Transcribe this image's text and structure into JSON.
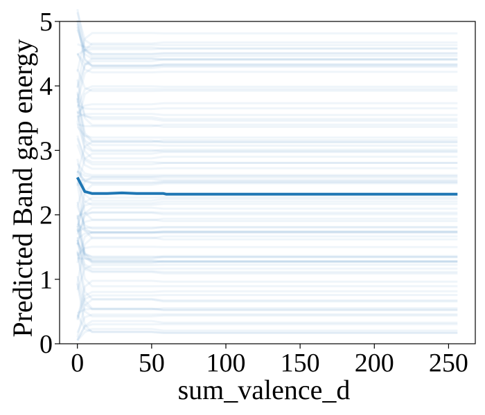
{
  "chart_data": {
    "type": "line",
    "title": "",
    "xlabel": "sum_valence_d",
    "ylabel": "Predicted Band gap energy",
    "xlim": [
      -12,
      268
    ],
    "ylim": [
      0,
      5
    ],
    "x_ticks": [
      0,
      50,
      100,
      150,
      200,
      250
    ],
    "y_ticks": [
      0,
      1,
      2,
      3,
      4,
      5
    ],
    "grid": false,
    "legend": "none",
    "ice_curves": {
      "description_color": "#1f77b4",
      "count_shown": 90,
      "x": [
        0,
        5,
        10,
        20,
        30,
        40,
        50,
        58,
        60,
        100,
        150,
        200,
        256
      ],
      "spread_min": 0.18,
      "spread_max": 4.85
    },
    "series": [
      {
        "x": [
          0,
          5,
          10,
          20,
          30,
          40,
          50,
          58,
          60,
          100,
          150,
          200,
          256
        ],
        "values": [
          2.58,
          2.36,
          2.33,
          2.33,
          2.34,
          2.33,
          2.33,
          2.33,
          2.32,
          2.32,
          2.32,
          2.32,
          2.32
        ],
        "color": "#1f77b4"
      }
    ]
  }
}
